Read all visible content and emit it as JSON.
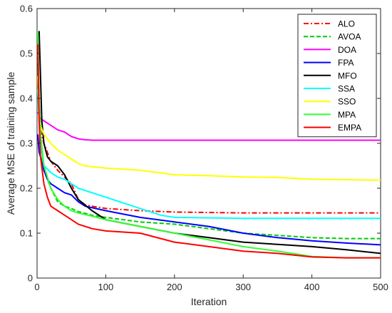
{
  "chart_data": {
    "type": "line",
    "xlabel": "Iteration",
    "ylabel": "Average MSE of training sample",
    "xlim": [
      0,
      500
    ],
    "ylim": [
      0,
      0.6
    ],
    "xticks": [
      0,
      100,
      200,
      300,
      400,
      500
    ],
    "yticks": [
      0,
      0.1,
      0.2,
      0.3,
      0.4,
      0.5,
      0.6
    ],
    "xtick_labels": [
      "0",
      "100",
      "200",
      "300",
      "400",
      "500"
    ],
    "ytick_labels": [
      "0",
      "0.1",
      "0.2",
      "0.3",
      "0.4",
      "0.5",
      "0.6"
    ],
    "grid": false,
    "legend_position": "top-right",
    "series": [
      {
        "name": "ALO",
        "color": "#ff0000",
        "dash": "dashdot",
        "x": [
          1,
          3,
          5,
          10,
          20,
          30,
          40,
          50,
          60,
          70,
          80,
          100,
          150,
          200,
          250,
          300,
          400,
          500
        ],
        "y": [
          0.52,
          0.4,
          0.33,
          0.3,
          0.26,
          0.24,
          0.225,
          0.21,
          0.175,
          0.163,
          0.16,
          0.155,
          0.15,
          0.147,
          0.146,
          0.145,
          0.145,
          0.145
        ]
      },
      {
        "name": "AVOA",
        "color": "#00cc00",
        "dash": "dashed",
        "x": [
          1,
          3,
          5,
          10,
          20,
          30,
          40,
          50,
          60,
          80,
          100,
          150,
          200,
          250,
          300,
          350,
          400,
          450,
          500
        ],
        "y": [
          0.5,
          0.35,
          0.3,
          0.24,
          0.2,
          0.17,
          0.16,
          0.155,
          0.148,
          0.14,
          0.135,
          0.125,
          0.12,
          0.11,
          0.1,
          0.095,
          0.09,
          0.088,
          0.088
        ]
      },
      {
        "name": "DOA",
        "color": "#ff00ff",
        "dash": "solid",
        "x": [
          1,
          5,
          10,
          20,
          30,
          40,
          50,
          60,
          70,
          80,
          100,
          200,
          300,
          400,
          500
        ],
        "y": [
          0.37,
          0.355,
          0.35,
          0.34,
          0.33,
          0.325,
          0.315,
          0.31,
          0.308,
          0.307,
          0.307,
          0.307,
          0.307,
          0.307,
          0.307
        ]
      },
      {
        "name": "FPA",
        "color": "#0000ff",
        "dash": "solid",
        "x": [
          1,
          3,
          5,
          10,
          15,
          20,
          30,
          40,
          50,
          60,
          70,
          100,
          150,
          200,
          250,
          300,
          350,
          400,
          450,
          500
        ],
        "y": [
          0.32,
          0.28,
          0.27,
          0.24,
          0.22,
          0.21,
          0.2,
          0.19,
          0.185,
          0.17,
          0.16,
          0.15,
          0.135,
          0.125,
          0.115,
          0.1,
          0.09,
          0.083,
          0.078,
          0.074
        ]
      },
      {
        "name": "MFO",
        "color": "#000000",
        "dash": "solid",
        "x": [
          3,
          5,
          7,
          10,
          15,
          20,
          30,
          40,
          50,
          60,
          80,
          100,
          150,
          200,
          250,
          300,
          350,
          400,
          450,
          500
        ],
        "y": [
          0.55,
          0.45,
          0.35,
          0.3,
          0.27,
          0.26,
          0.25,
          0.23,
          0.2,
          0.175,
          0.15,
          0.13,
          0.115,
          0.1,
          0.09,
          0.08,
          0.075,
          0.07,
          0.063,
          0.055
        ]
      },
      {
        "name": "SSA",
        "color": "#00ffff",
        "dash": "solid",
        "x": [
          1,
          3,
          5,
          10,
          20,
          30,
          40,
          50,
          60,
          80,
          100,
          130,
          150,
          180,
          200,
          300,
          400,
          500
        ],
        "y": [
          0.42,
          0.35,
          0.3,
          0.25,
          0.235,
          0.225,
          0.22,
          0.21,
          0.2,
          0.19,
          0.18,
          0.165,
          0.155,
          0.14,
          0.135,
          0.133,
          0.133,
          0.133
        ]
      },
      {
        "name": "SSO",
        "color": "#ffff00",
        "dash": "solid",
        "x": [
          1,
          3,
          5,
          10,
          20,
          30,
          40,
          50,
          60,
          70,
          80,
          100,
          150,
          200,
          250,
          300,
          350,
          400,
          450,
          500
        ],
        "y": [
          0.45,
          0.36,
          0.34,
          0.32,
          0.3,
          0.285,
          0.275,
          0.265,
          0.255,
          0.25,
          0.248,
          0.245,
          0.24,
          0.23,
          0.228,
          0.225,
          0.224,
          0.22,
          0.219,
          0.218
        ]
      },
      {
        "name": "MPA",
        "color": "#33ff33",
        "dash": "solid",
        "x": [
          1,
          3,
          5,
          10,
          20,
          30,
          40,
          50,
          60,
          80,
          100,
          150,
          200,
          250,
          300,
          350,
          400,
          450,
          500
        ],
        "y": [
          0.55,
          0.4,
          0.32,
          0.25,
          0.2,
          0.175,
          0.16,
          0.15,
          0.145,
          0.138,
          0.13,
          0.115,
          0.1,
          0.085,
          0.07,
          0.06,
          0.048,
          0.045,
          0.045
        ]
      },
      {
        "name": "EMPA",
        "color": "#ff0000",
        "dash": "solid",
        "x": [
          1,
          3,
          5,
          10,
          15,
          20,
          30,
          40,
          50,
          60,
          80,
          100,
          150,
          200,
          250,
          300,
          350,
          400,
          450,
          500
        ],
        "y": [
          0.52,
          0.35,
          0.27,
          0.21,
          0.18,
          0.16,
          0.15,
          0.14,
          0.13,
          0.12,
          0.11,
          0.105,
          0.1,
          0.08,
          0.07,
          0.06,
          0.055,
          0.047,
          0.045,
          0.045
        ]
      }
    ]
  }
}
